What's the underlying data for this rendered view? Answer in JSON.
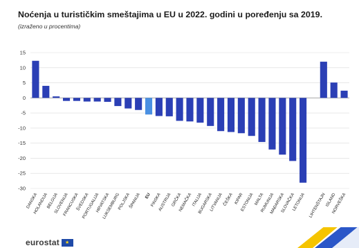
{
  "title": "Noćenja u turističkim smeštajima u EU u 2022. godini u poređenju sa 2019.",
  "subtitle": "(izraženo u procentima)",
  "brand": "eurostat",
  "colors": {
    "bar": "#2b3fb5",
    "highlight": "#4a90e2",
    "grid": "#d9d9d9",
    "accent_yellow": "#f5c400",
    "accent_blue": "#2b57c8"
  },
  "chart_data": {
    "type": "bar",
    "title": "Noćenja u turističkim smeštajima u EU u 2022. godini u poređenju sa 2019.",
    "subtitle": "(izraženo u procentima)",
    "ylim": [
      -30,
      15
    ],
    "yticks": [
      15,
      10,
      5,
      0,
      -5,
      -10,
      -15,
      -20,
      -25,
      -30
    ],
    "grid": true,
    "highlight_category": "EU",
    "categories": [
      "DANSKA",
      "HOLANDIJA",
      "BELGIJA",
      "SLOVENIJA",
      "FRANCUSKA",
      "ŠVEDSKA",
      "PORTUGALIJA",
      "HRVATSKA",
      "LUKSEMBURG",
      "POLJSKA",
      "ŠPANIJA",
      "EU",
      "FINSKA",
      "AUSTRIJA",
      "GRČKA",
      "NEMAČKA",
      "ITALIJA",
      "BUGARSKA",
      "LITVANIJA",
      "ČEŠKA",
      "KIPAR",
      "ESTONIJA",
      "MALTA",
      "RUMUNIJA",
      "MAĐARSKA",
      "SLOVAČKA",
      "LETONIJA",
      "",
      "LIHTENŠTAJN",
      "ISLAND",
      "NORVEŠKA"
    ],
    "values": [
      12.3,
      4.0,
      0.5,
      -1.0,
      -1.0,
      -1.2,
      -1.2,
      -1.3,
      -2.7,
      -3.5,
      -4.0,
      -5.5,
      -6.0,
      -6.1,
      -7.6,
      -7.8,
      -8.2,
      -9.3,
      -11.0,
      -11.3,
      -11.7,
      -12.6,
      -14.6,
      -17.1,
      -18.8,
      -20.9,
      -28.1,
      null,
      12.0,
      5.1,
      2.4
    ]
  }
}
